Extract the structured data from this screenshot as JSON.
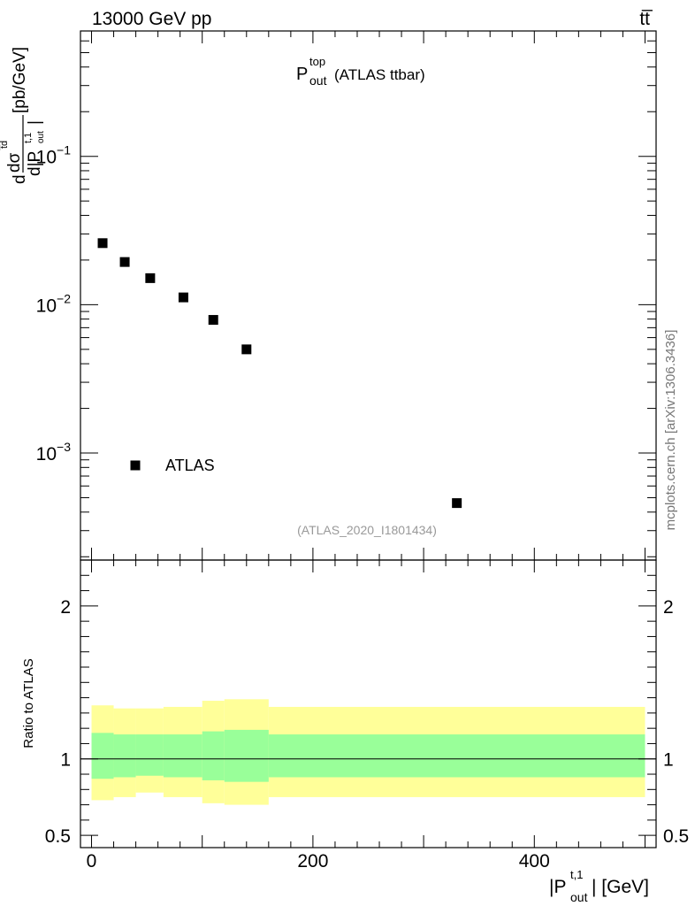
{
  "header": {
    "energy_label": "13000 GeV pp",
    "process_label": "tt̅"
  },
  "side_label": "mcplots.cern.ch [arXiv:1306.3436]",
  "chart_data": [
    {
      "type": "scatter",
      "title_main": "P",
      "title_sup": "top",
      "title_sub": "out",
      "title_rest": "(ATLAS ttbar)",
      "analysis_tag": "(ATLAS_2020_I1801434)",
      "ylabel": "dσ/d|P_out^t,1| [pb/GeV]",
      "ylabel_parts": {
        "d1": "d",
        "num": "dσ",
        "num_sup": "t̅d",
        "den": "d|P",
        "den_sup": "t,1",
        "den_sub": "out",
        "den_end": "|",
        "unit": "[pb/GeV]"
      },
      "yscale": "log",
      "ylim": [
        0.00019,
        0.7
      ],
      "xlim": [
        -10,
        510
      ],
      "yticks": [
        {
          "value": 0.1,
          "base": "10",
          "exp": "−1"
        },
        {
          "value": 0.01,
          "base": "10",
          "exp": "−2"
        },
        {
          "value": 0.001,
          "base": "10",
          "exp": "−3"
        }
      ],
      "legend": {
        "label": "ATLAS",
        "position": "bottom-left"
      },
      "series": [
        {
          "name": "ATLAS",
          "marker": "square",
          "color": "#000000",
          "x": [
            10,
            30,
            53,
            83,
            110,
            140,
            330
          ],
          "y": [
            0.026,
            0.0194,
            0.0151,
            0.0112,
            0.0079,
            0.005,
            0.00046
          ]
        }
      ]
    },
    {
      "type": "area",
      "ylabel": "Ratio to ATLAS",
      "ylim": [
        0.42,
        2.3
      ],
      "yticks": [
        {
          "value": 0.5,
          "label": "0.5"
        },
        {
          "value": 1,
          "label": "1"
        },
        {
          "value": 2,
          "label": "2"
        }
      ],
      "xlim": [
        -10,
        510
      ],
      "xticks": [
        {
          "value": 0,
          "label": "0"
        },
        {
          "value": 200,
          "label": "200"
        },
        {
          "value": 400,
          "label": "400"
        }
      ],
      "xlabel_parts": {
        "pre": "|P",
        "sup": "t,1",
        "sub": "out",
        "post": "| [GeV]"
      },
      "reference_line": 1,
      "band_colors": {
        "outer": "#ffff99",
        "inner": "#99ff99"
      },
      "bins": [
        {
          "lo": 0,
          "hi": 20,
          "inner_lo": 0.87,
          "inner_hi": 1.17,
          "outer_lo": 0.73,
          "outer_hi": 1.35
        },
        {
          "lo": 20,
          "hi": 40,
          "inner_lo": 0.88,
          "inner_hi": 1.16,
          "outer_lo": 0.75,
          "outer_hi": 1.33
        },
        {
          "lo": 40,
          "hi": 65,
          "inner_lo": 0.89,
          "inner_hi": 1.16,
          "outer_lo": 0.78,
          "outer_hi": 1.33
        },
        {
          "lo": 65,
          "hi": 100,
          "inner_lo": 0.88,
          "inner_hi": 1.16,
          "outer_lo": 0.75,
          "outer_hi": 1.34
        },
        {
          "lo": 100,
          "hi": 120,
          "inner_lo": 0.86,
          "inner_hi": 1.18,
          "outer_lo": 0.71,
          "outer_hi": 1.38
        },
        {
          "lo": 120,
          "hi": 160,
          "inner_lo": 0.85,
          "inner_hi": 1.19,
          "outer_lo": 0.7,
          "outer_hi": 1.39
        },
        {
          "lo": 160,
          "hi": 500,
          "inner_lo": 0.88,
          "inner_hi": 1.16,
          "outer_lo": 0.75,
          "outer_hi": 1.34
        }
      ]
    }
  ]
}
